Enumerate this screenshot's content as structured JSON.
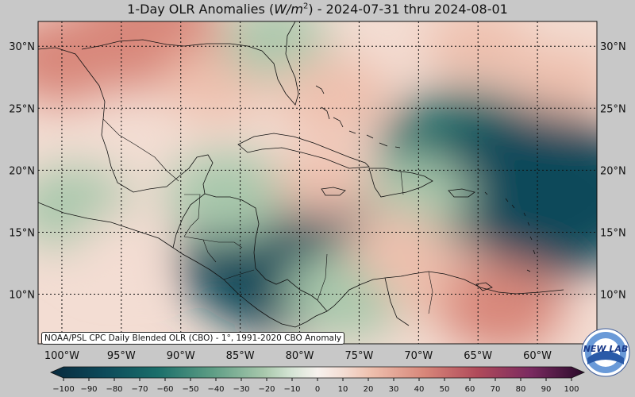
{
  "title": {
    "prefix": "1-Day OLR Anomalies (",
    "unit_var": "W/m",
    "unit_exp": "2",
    "suffix": ") - 2024-07-31 thru 2024-08-01"
  },
  "map": {
    "lon_range": [
      -102,
      -55
    ],
    "lat_range": [
      6,
      32
    ],
    "lon_ticks": [
      {
        "value": -100,
        "label": "100°W"
      },
      {
        "value": -95,
        "label": "95°W"
      },
      {
        "value": -90,
        "label": "90°W"
      },
      {
        "value": -85,
        "label": "85°W"
      },
      {
        "value": -80,
        "label": "80°W"
      },
      {
        "value": -75,
        "label": "75°W"
      },
      {
        "value": -70,
        "label": "70°W"
      },
      {
        "value": -65,
        "label": "65°W"
      },
      {
        "value": -60,
        "label": "60°W"
      }
    ],
    "lat_ticks": [
      {
        "value": 30,
        "label": "30°N"
      },
      {
        "value": 25,
        "label": "25°N"
      },
      {
        "value": 20,
        "label": "20°N"
      },
      {
        "value": 15,
        "label": "15°N"
      },
      {
        "value": 10,
        "label": "10°N"
      }
    ],
    "anomaly_features": [
      {
        "lon": -93,
        "lat": 31,
        "value": 45
      },
      {
        "lon": -100,
        "lat": 29,
        "value": 30
      },
      {
        "lon": -87,
        "lat": 27,
        "value": 20
      },
      {
        "lon": -82,
        "lat": 30.5,
        "value": -20
      },
      {
        "lon": -77,
        "lat": 26,
        "value": 25
      },
      {
        "lon": -65,
        "lat": 30,
        "value": 20
      },
      {
        "lon": -58,
        "lat": 27,
        "value": 20
      },
      {
        "lon": -66,
        "lat": 21.5,
        "value": -55
      },
      {
        "lon": -60,
        "lat": 18,
        "value": -85
      },
      {
        "lon": -70,
        "lat": 18,
        "value": -20
      },
      {
        "lon": -81,
        "lat": 13,
        "value": -75
      },
      {
        "lon": -86,
        "lat": 18,
        "value": -30
      },
      {
        "lon": -99,
        "lat": 17,
        "value": -25
      },
      {
        "lon": -76,
        "lat": 10,
        "value": -30
      },
      {
        "lon": -95,
        "lat": 14,
        "value": 10
      },
      {
        "lon": -68,
        "lat": 11,
        "value": 25
      },
      {
        "lon": -63,
        "lat": 9,
        "value": 30
      },
      {
        "lon": -72,
        "lat": 14,
        "value": 15
      },
      {
        "lon": -78,
        "lat": 19,
        "value": 15
      }
    ]
  },
  "colorbar": {
    "labels": [
      "−100",
      "−90",
      "−80",
      "−70",
      "−60",
      "−50",
      "−40",
      "−30",
      "−20",
      "−10",
      "0",
      "10",
      "20",
      "30",
      "40",
      "50",
      "60",
      "70",
      "80",
      "90",
      "100"
    ],
    "min": -100,
    "max": 100,
    "colors": {
      "min": "#082a3e",
      "teal": "#1a6e6a",
      "light_neg": "#cfe0cf",
      "zero": "#f7f2ee",
      "light_pos": "#f0c8b8",
      "pos": "#c8675a",
      "max": "#2a0a2a"
    }
  },
  "credit": "NOAA/PSL CPC Daily Blended OLR (CBO) - 1°, 1991-2020 CBO Anomaly",
  "logo": {
    "text": "NEW LAB"
  }
}
